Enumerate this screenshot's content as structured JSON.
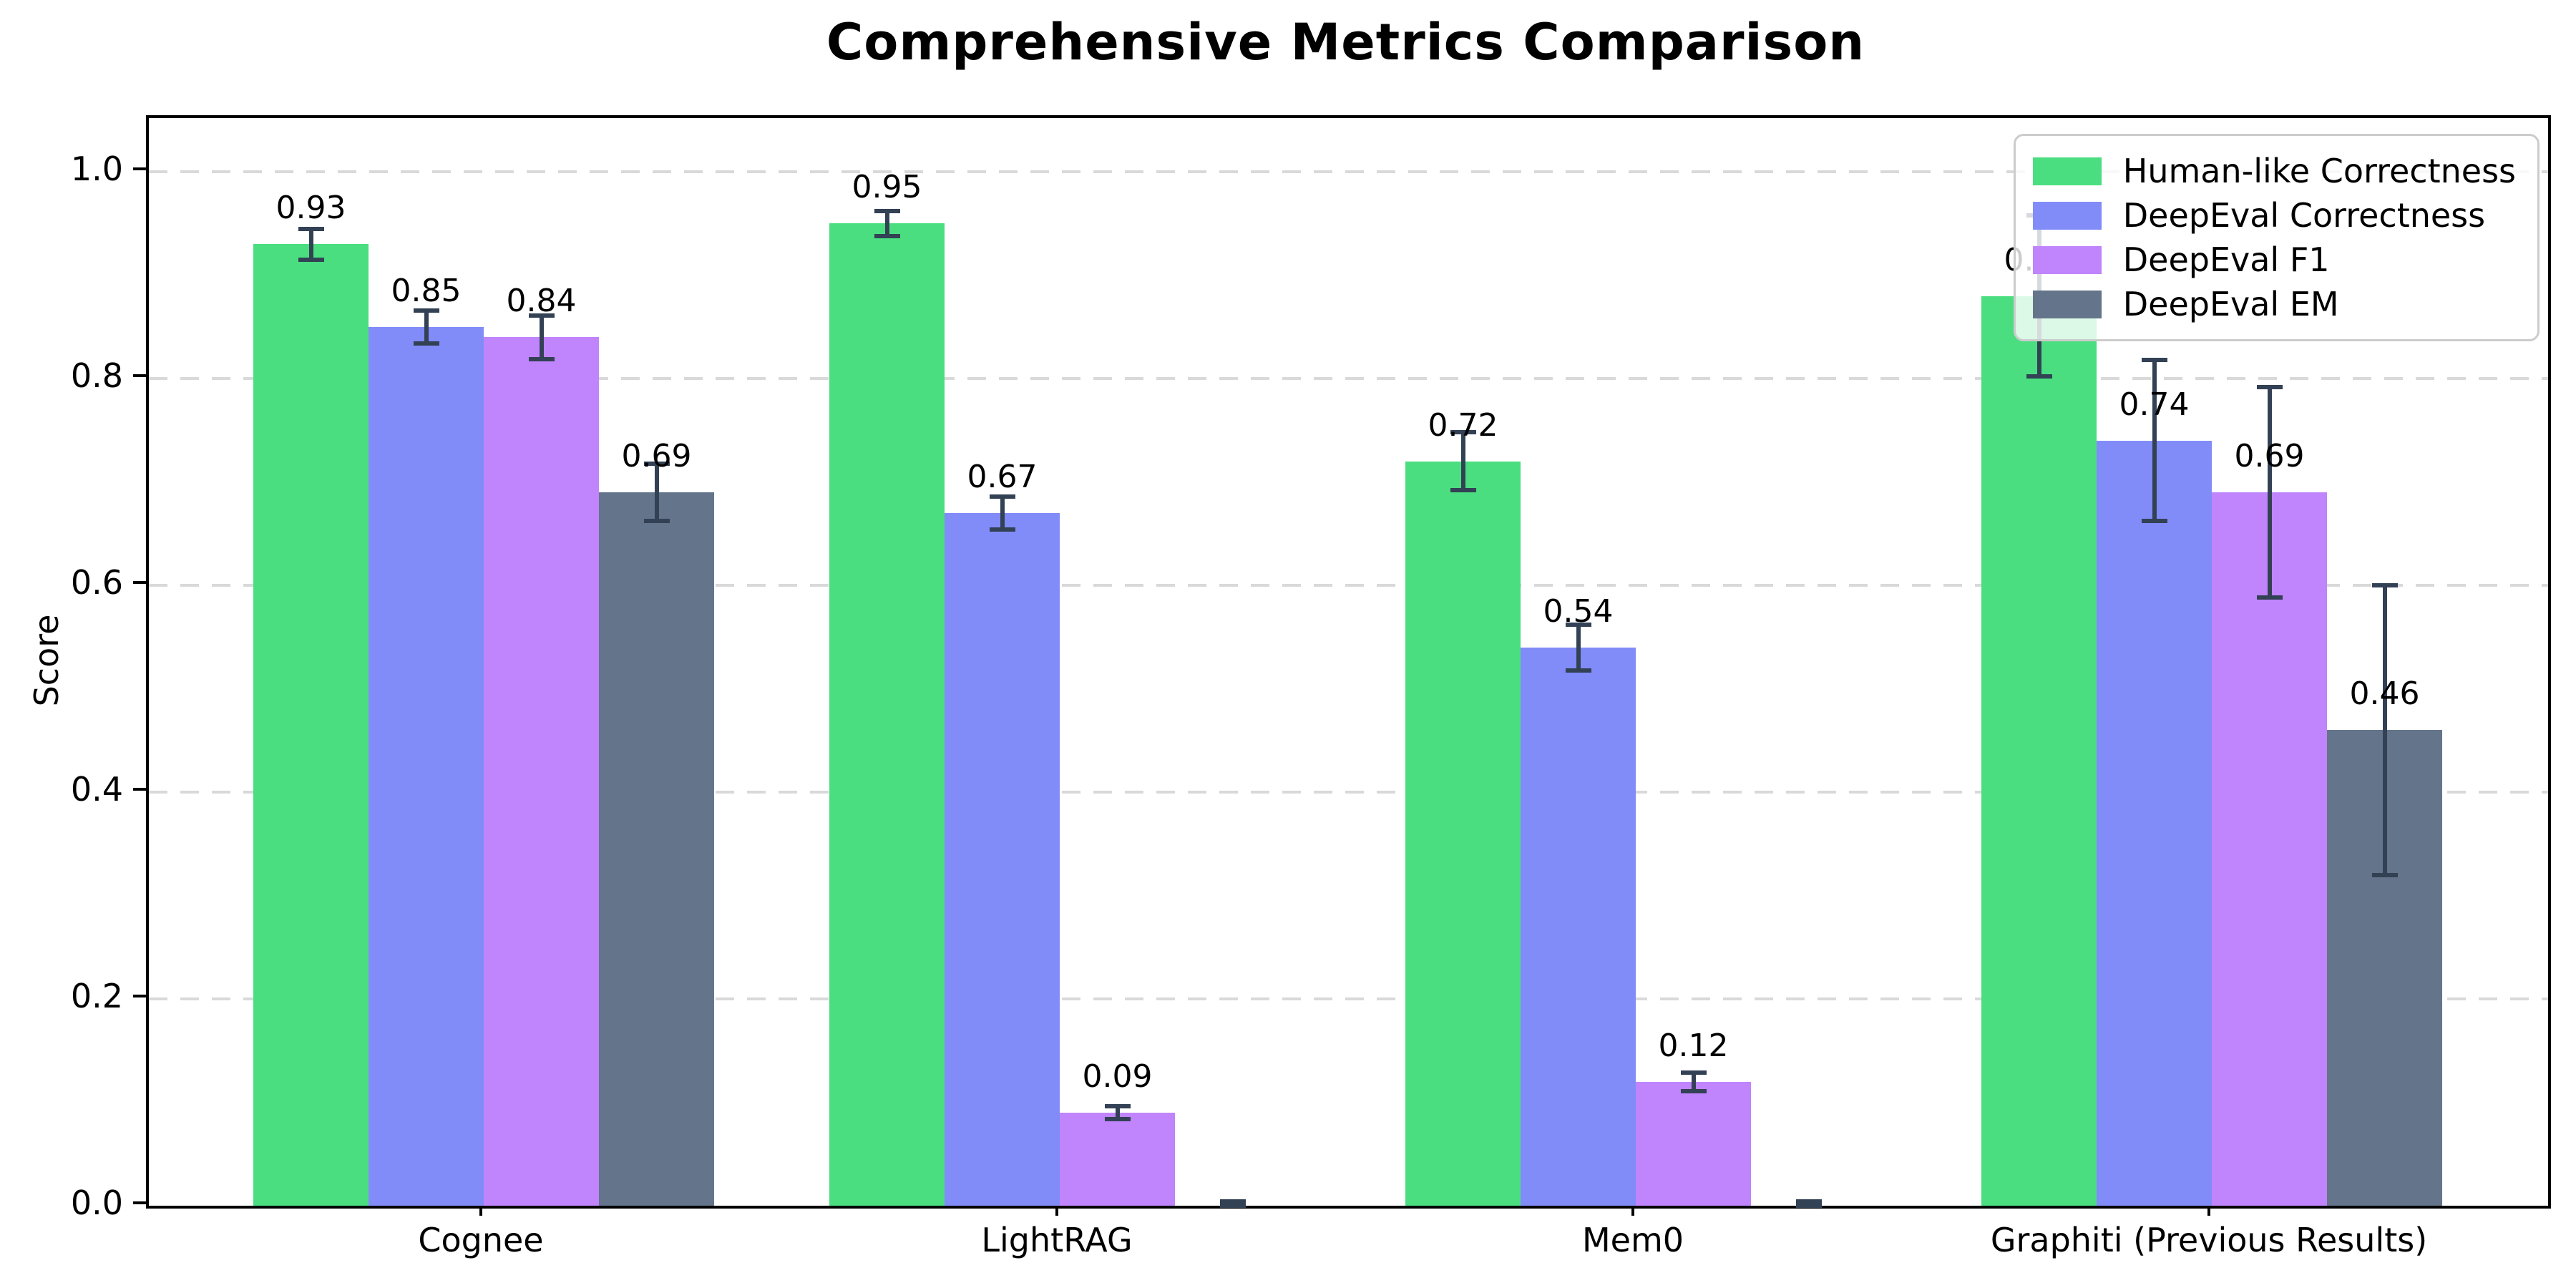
{
  "title": "Comprehensive Metrics Comparison",
  "ylabel": "Score",
  "colors": {
    "series_green": "#4ade80",
    "series_indigo": "#818cf8",
    "series_purple": "#c084fc",
    "series_slate": "#64748b",
    "error_bar": "#334155",
    "grid": "#d9d9d9",
    "spine": "#000000",
    "legend_border": "#cccccc"
  },
  "legend": {
    "position": "upper right",
    "items": [
      {
        "label": "Human-like Correctness",
        "color": "#4ade80"
      },
      {
        "label": "DeepEval Correctness",
        "color": "#818cf8"
      },
      {
        "label": "DeepEval F1",
        "color": "#c084fc"
      },
      {
        "label": "DeepEval EM",
        "color": "#64748b"
      }
    ]
  },
  "chart_data": {
    "type": "bar",
    "title": "Comprehensive Metrics Comparison",
    "xlabel": "",
    "ylabel": "Score",
    "categories": [
      "Cognee",
      "LightRAG",
      "Mem0",
      "Graphiti (Previous Results)"
    ],
    "series": [
      {
        "name": "Human-like Correctness",
        "color": "#4ade80",
        "values": [
          0.93,
          0.95,
          0.72,
          0.88
        ],
        "errors": [
          0.015,
          0.012,
          0.028,
          0.078
        ],
        "labels": [
          "0.93",
          "0.95",
          "0.72",
          "0.88"
        ]
      },
      {
        "name": "DeepEval Correctness",
        "color": "#818cf8",
        "values": [
          0.85,
          0.67,
          0.54,
          0.74
        ],
        "errors": [
          0.016,
          0.016,
          0.022,
          0.078
        ],
        "labels": [
          "0.85",
          "0.67",
          "0.54",
          "0.74"
        ]
      },
      {
        "name": "DeepEval F1",
        "color": "#c084fc",
        "values": [
          0.84,
          0.09,
          0.12,
          0.69
        ],
        "errors": [
          0.021,
          0.006,
          0.009,
          0.102
        ],
        "labels": [
          "0.84",
          "0.09",
          "0.12",
          "0.69"
        ]
      },
      {
        "name": "DeepEval EM",
        "color": "#64748b",
        "values": [
          0.69,
          0.0,
          0.0,
          0.46
        ],
        "errors": [
          0.028,
          0.004,
          0.004,
          0.14
        ],
        "labels": [
          "0.69",
          "",
          "",
          "0.46"
        ]
      }
    ],
    "yticks": [
      0.0,
      0.2,
      0.4,
      0.6,
      0.8,
      1.0
    ],
    "ylim": [
      0,
      1.052
    ],
    "grid": "horizontal dashed",
    "legend_position": "upper right"
  }
}
